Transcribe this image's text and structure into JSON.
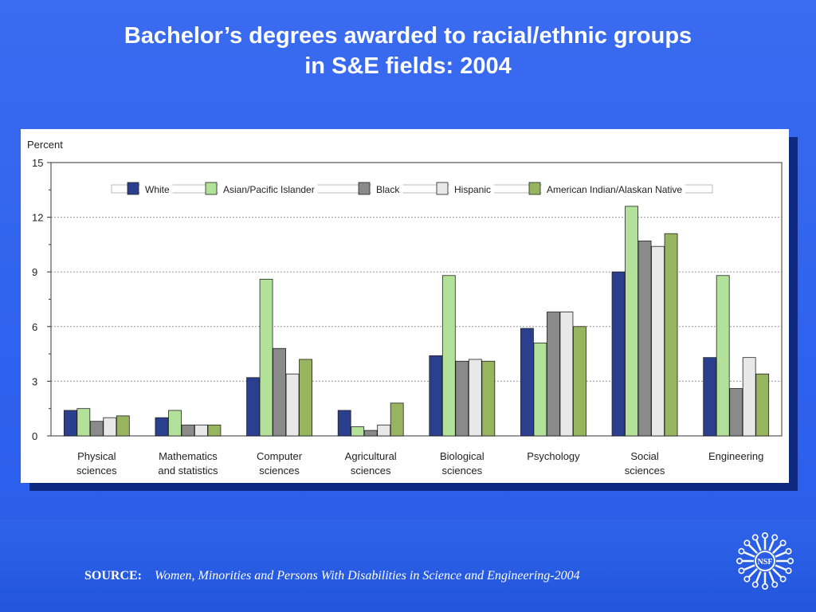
{
  "title": {
    "line1": "Bachelor’s degrees awarded to racial/ethnic groups",
    "line2": "in S&E fields: 2004"
  },
  "source": {
    "label": "SOURCE:",
    "reference": "Women, Minorities and Persons With Disabilities in Science and Engineering-2004"
  },
  "logo": {
    "text": "NSF"
  },
  "chart_data": {
    "type": "bar",
    "title": "",
    "ylabel": "Percent",
    "xlabel": "",
    "ylim": [
      0,
      15
    ],
    "yticks": [
      0,
      3,
      6,
      9,
      12,
      15
    ],
    "grid": true,
    "legend_position": "top",
    "categories": [
      [
        "Physical",
        "sciences"
      ],
      [
        "Mathematics",
        "and statistics"
      ],
      [
        "Computer",
        "sciences"
      ],
      [
        "Agricultural",
        "sciences"
      ],
      [
        "Biological",
        "sciences"
      ],
      [
        "Psychology"
      ],
      [
        "Social",
        "sciences"
      ],
      [
        "Engineering"
      ]
    ],
    "series": [
      {
        "name": "White",
        "color": "#2b3f8f",
        "values": [
          1.4,
          1.0,
          3.2,
          1.4,
          4.4,
          5.9,
          9.0,
          4.3
        ]
      },
      {
        "name": "Asian/Pacific Islander",
        "color": "#b2e29a",
        "values": [
          1.5,
          1.4,
          8.6,
          0.5,
          8.8,
          5.1,
          12.6,
          8.8
        ]
      },
      {
        "name": "Black",
        "color": "#8a8a8a",
        "values": [
          0.8,
          0.6,
          4.8,
          0.3,
          4.1,
          6.8,
          10.7,
          2.6
        ]
      },
      {
        "name": "Hispanic",
        "color": "#e8e8e8",
        "values": [
          1.0,
          0.6,
          3.4,
          0.6,
          4.2,
          6.8,
          10.4,
          4.3
        ]
      },
      {
        "name": "American Indian/Alaskan Native",
        "color": "#96b55e",
        "values": [
          1.1,
          0.6,
          4.2,
          1.8,
          4.1,
          6.0,
          11.1,
          3.4
        ]
      }
    ]
  }
}
